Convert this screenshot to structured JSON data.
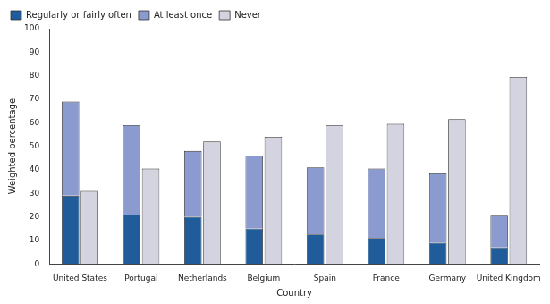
{
  "chart_data": {
    "type": "bar",
    "x_label": "Country",
    "y_label": "Weighted percentage",
    "categories": [
      "United States",
      "Portugal",
      "Netherlands",
      "Belgium",
      "Spain",
      "France",
      "Germany",
      "United Kingdom"
    ],
    "series": [
      {
        "name": "Regularly or fairly often",
        "color": "#1f5c99",
        "stacked": true,
        "values": [
          29,
          21,
          20,
          15,
          12.5,
          11,
          9,
          7
        ]
      },
      {
        "name": "At least once",
        "color": "#8c9bcf",
        "stacked": true,
        "values": [
          40,
          38,
          28,
          31,
          28.5,
          29.5,
          29.5,
          13.5
        ]
      },
      {
        "name": "Never",
        "color": "#d4d4e0",
        "stacked": false,
        "values": [
          31,
          40.5,
          52,
          54,
          59,
          59.5,
          61.5,
          79.5
        ]
      }
    ],
    "ylim": [
      0,
      100
    ],
    "yticks": [
      0,
      10,
      20,
      30,
      40,
      50,
      60,
      70,
      80,
      90,
      100
    ],
    "grid": false,
    "legend": "upper left",
    "stacked": true
  }
}
